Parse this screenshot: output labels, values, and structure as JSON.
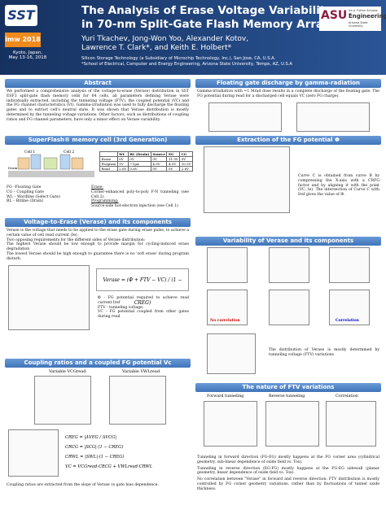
{
  "header": {
    "title_lines": [
      "The Analysis of Erase Voltage Variability",
      "in 70-nm Split-Gate Flash Memory Arrays"
    ],
    "authors_lines": [
      "Yuri Tkachev, Jong-Won Yoo, Alexander Kotov,",
      "Lawrence T. Clark*, and Keith E. Holbert*"
    ],
    "affiliations": [
      "Silicon Storage Technology (a Subsidiary of Microchip Technology, Inc.), San Jose, CA, U.S.A.",
      "*School of Electrical, Computer and Energy Engineering, Arizona State University, Tempe, AZ, U.S.A"
    ],
    "left_logo": "SST",
    "conference": "imw 2018",
    "venue_lines": [
      "Kyoto, Japan,",
      "May 13-16, 2018"
    ],
    "right_logo": "ASU",
    "school_lines": [
      "Ira A. Fulton Schools of",
      "Engineering",
      "Arizona State University"
    ]
  },
  "abstract": {
    "title": "Abstract",
    "text": "We performed a comprehensive analysis of the voltage-to-erase (Verase) distribution in SST ESF3 split-gate flash memory cells for 64 cells, all parameters defining Verase were individually extracted, including the tunneling voltage (FTV), the coupled potential (VC) and the FG channel characteristics (Vt). Gamma-irradiation was used to fully discharge the floating gates and to extract cell's neutral state. It was shown that Verase distribution is mostly determined by the tunneling voltage variations. Other factors, such as distributions of coupling ratios and FG channel parameters, have only a minor effect on Verase variability."
  },
  "cell": {
    "title": "SuperFlash® memory cell (3rd Generation)",
    "cell_labels": [
      "Cell 1",
      "Cell 2",
      "Drain"
    ],
    "table": {
      "header": [
        "",
        "WL",
        "BL (Drain)",
        "Source",
        "EG",
        "CG"
      ],
      "rows": [
        [
          "Erase",
          "0V",
          "0V",
          "0V",
          "11.5V",
          "0V"
        ],
        [
          "Program",
          "1V",
          "~1µA",
          "4.5V",
          "4.5V",
          "10.5V"
        ],
        [
          "Read",
          "2.6V",
          "0.6V",
          "0V",
          "0V",
          "2.6V"
        ]
      ]
    },
    "legend": [
      "FG –Floating Gate",
      "CG – Coupling Gate",
      "WL – Wordline (Select Gate)",
      "BL – Bitline (Drain)"
    ],
    "ops": [
      "Erase:",
      "Corner-enhanced poly-to-poly F-N tunneling (see Cell 2).",
      "Programming:",
      "Source-side hot-electron injection (see Cell 1)."
    ]
  },
  "verase": {
    "title": "Voltage-to-Erase (Verase) and its components",
    "text": [
      "Verase is the voltage that needs to be applied to the erase gate during erase pulse, to achieve a certain value of cell read current (Ie).",
      "Two opposing requirements for the different sides of Verase distribution:",
      "The highest Verase should be low enough to provide margin for cycling-induced erase degradation",
      "The lowest Verase should be high enough to guarantee there is no 'soft erase' during program disturb."
    ],
    "formula": "Verase = (Φ + FTV − VC) / (1 − CREG)",
    "definitions": [
      "Φ - FG potential required to achieve read current Iref",
      "FTV - tunneling voltage;",
      "VC - FG potential coupled from other gates during read"
    ]
  },
  "coupling": {
    "title": "Coupling ratios and a coupled FG potential Vc",
    "plot_titles": [
      "Variable VCGread",
      "Variable VWLread"
    ],
    "equations": [
      "CREG = |ΔVEG / ΔVCG|",
      "CRCG = |SCG|·(1 − CREG)",
      "CRWL = |SWL|·(1 − CREG)",
      "VC = VCGread·CRCG + VWLread·CRWL"
    ],
    "note": "Coupling ratios are extracted from the slope of Verase vs gate bias dependence."
  },
  "gamma": {
    "title": "Floating gate discharge by gamma-radiation",
    "text": "Gamma-irradiation with ~1 Mrad dose results in a complete discharge of the floating gate. The FG potential during read for a discharged cell equals VC (zero FG charge)."
  },
  "extraction": {
    "title": "Extraction of the FG potential Φ",
    "text": "Curve C is obtained from curve B by compressing the X-axis with a CRFG factor and by aligning it with the point (VC, Ie). The intersection of Curve C with Iref gives the value of Φ."
  },
  "variability": {
    "title": "Variability of Verase and its components",
    "labels": [
      "No correlation",
      "Correlation"
    ],
    "text": "The distribution of Verase is mostly determined by tunneling voltage (FTV) variations"
  },
  "ftv": {
    "title": "The nature of FTV variations",
    "plot_titles": [
      "Forward tunneling",
      "Reverse tunneling",
      "Correlation"
    ],
    "text": [
      "Tunneling in forward direction (FG-EG) mostly happens at the FG corner area (cylindrical geometry, sub-linear dependence of oxide field vs. Tox).",
      "Tunneling in reverse direction (EG-FG) mostly happens at the FG-EG sidewall (planar geometry, linear dependence of oxide field vs. Tox).",
      "No correlation between \"Verase\" in forward and reverse direction: FTV distribution is mostly controlled by FG corner geometry variations, rather than by fluctuations of tunnel oxide thickness."
    ]
  }
}
